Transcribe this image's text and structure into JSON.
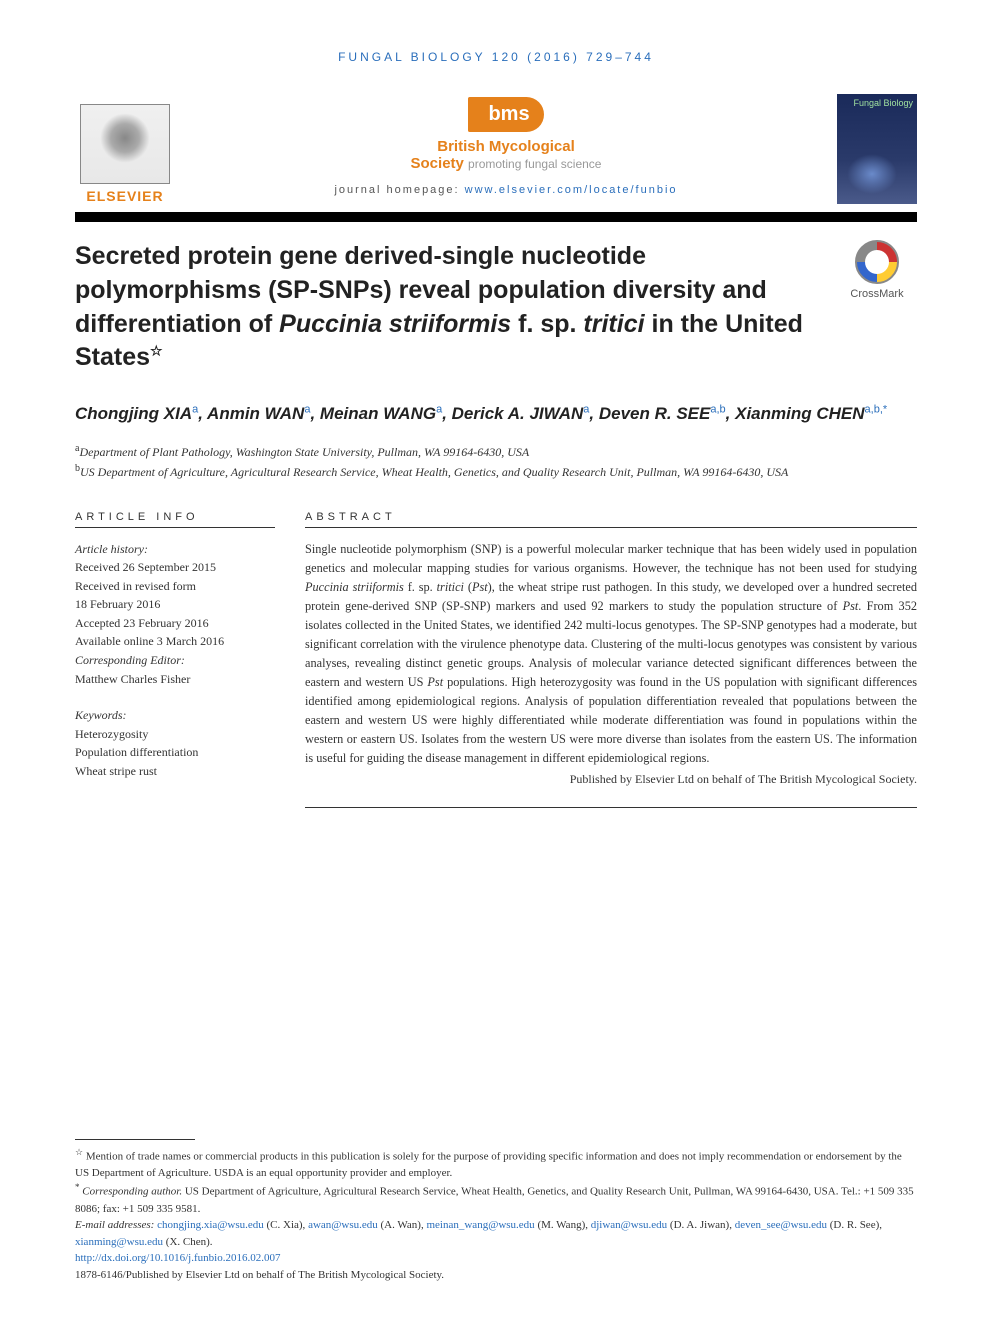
{
  "journal_ref": "FUNGAL BIOLOGY 120 (2016) 729–744",
  "publisher": {
    "elsevier": "ELSEVIER",
    "bms_logo": "bms",
    "bms_name_bold": "British Mycological",
    "bms_name_rest": "Society",
    "bms_tagline": "promoting fungal science",
    "homepage_label": "journal homepage: ",
    "homepage_url": "www.elsevier.com/locate/funbio",
    "cover_title": "Fungal\nBiology"
  },
  "crossmark": "CrossMark",
  "title": {
    "line1": "Secreted protein gene derived-single nucleotide polymorphisms (SP-SNPs) reveal population diversity and differentiation of ",
    "ital1": "Puccinia striiformis",
    "mid": " f. sp. ",
    "ital2": "tritici",
    "line2": " in the United States",
    "star": "☆"
  },
  "authors": [
    {
      "name": "Chongjing XIA",
      "aff": "a"
    },
    {
      "name": "Anmin WAN",
      "aff": "a"
    },
    {
      "name": "Meinan WANG",
      "aff": "a"
    },
    {
      "name": "Derick A. JIWAN",
      "aff": "a"
    },
    {
      "name": "Deven R. SEE",
      "aff": "a,b"
    },
    {
      "name": "Xianming CHEN",
      "aff": "a,b,",
      "corr": true
    }
  ],
  "affiliations": {
    "a": "Department of Plant Pathology, Washington State University, Pullman, WA 99164-6430, USA",
    "b": "US Department of Agriculture, Agricultural Research Service, Wheat Health, Genetics, and Quality Research Unit, Pullman, WA 99164-6430, USA"
  },
  "article_info": {
    "heading": "ARTICLE INFO",
    "history_label": "Article history:",
    "received": "Received 26 September 2015",
    "revised1": "Received in revised form",
    "revised2": "18 February 2016",
    "accepted": "Accepted 23 February 2016",
    "online": "Available online 3 March 2016",
    "corr_ed_label": "Corresponding Editor:",
    "corr_ed": "Matthew Charles Fisher",
    "kw_label": "Keywords:",
    "keywords": [
      "Heterozygosity",
      "Population differentiation",
      "Wheat stripe rust"
    ]
  },
  "abstract": {
    "heading": "ABSTRACT",
    "body_parts": [
      "Single nucleotide polymorphism (SNP) is a powerful molecular marker technique that has been widely used in population genetics and molecular mapping studies for various organisms. However, the technique has not been used for studying ",
      " f. sp. ",
      " (",
      "), the wheat stripe rust pathogen. In this study, we developed over a hundred secreted protein gene-derived SNP (SP-SNP) markers and used 92 markers to study the population structure of ",
      ". From 352 isolates collected in the United States, we identified 242 multi-locus genotypes. The SP-SNP genotypes had a moderate, but significant correlation with the virulence phenotype data. Clustering of the multi-locus genotypes was consistent by various analyses, revealing distinct genetic groups. Analysis of molecular variance detected significant differences between the eastern and western US ",
      " populations. High heterozygosity was found in the US population with significant differences identified among epidemiological regions. Analysis of population differentiation revealed that populations between the eastern and western US were highly differentiated while moderate differentiation was found in populations within the western or eastern US. Isolates from the western US were more diverse than isolates from the eastern US. The information is useful for guiding the disease management in different epidemiological regions."
    ],
    "ital_terms": [
      "Puccinia striiformis",
      "tritici",
      "Pst",
      "Pst",
      "Pst"
    ],
    "publisher_line": "Published by Elsevier Ltd on behalf of The British Mycological Society."
  },
  "footnotes": {
    "disclaimer": "Mention of trade names or commercial products in this publication is solely for the purpose of providing specific information and does not imply recommendation or endorsement by the US Department of Agriculture. USDA is an equal opportunity provider and employer.",
    "corr_label": "Corresponding author.",
    "corr_text": " US Department of Agriculture, Agricultural Research Service, Wheat Health, Genetics, and Quality Research Unit, Pullman, WA 99164-6430, USA. Tel.: +1 509 335 8086; fax: +1 509 335 9581.",
    "email_label": "E-mail addresses: ",
    "emails": [
      {
        "addr": "chongjing.xia@wsu.edu",
        "who": "(C. Xia)"
      },
      {
        "addr": "awan@wsu.edu",
        "who": "(A. Wan)"
      },
      {
        "addr": "meinan_wang@wsu.edu",
        "who": "(M. Wang)"
      },
      {
        "addr": "djiwan@wsu.edu",
        "who": "(D. A. Jiwan)"
      },
      {
        "addr": "deven_see@wsu.edu",
        "who": "(D. R. See)"
      },
      {
        "addr": "xianming@wsu.edu",
        "who": "(X. Chen)"
      }
    ],
    "doi": "http://dx.doi.org/10.1016/j.funbio.2016.02.007",
    "issn_line": "1878-6146/Published by Elsevier Ltd on behalf of The British Mycological Society."
  },
  "colors": {
    "link": "#2a6ebb",
    "orange": "#e5811b",
    "text": "#333333"
  }
}
